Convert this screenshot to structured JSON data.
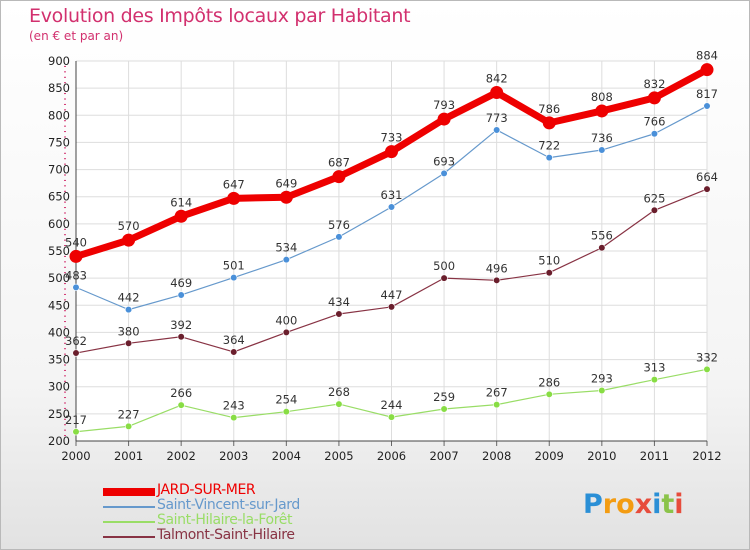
{
  "header": {
    "title": "Evolution des Impôts locaux par Habitant",
    "subtitle": "(en € et par an)"
  },
  "logo": {
    "letters": [
      "P",
      "r",
      "o",
      "x",
      "i",
      "t",
      "i"
    ],
    "colors": [
      "#2a8fd6",
      "#f39c12",
      "#f39c12",
      "#e74c3c",
      "#2a8fd6",
      "#8bc34a",
      "#e74c3c"
    ]
  },
  "chart_data": {
    "type": "line",
    "title": "Evolution des Impôts locaux par Habitant",
    "subtitle": "(en € et par an)",
    "xlabel": "",
    "ylabel": "",
    "x": [
      "2000",
      "2001",
      "2002",
      "2003",
      "2004",
      "2005",
      "2006",
      "2007",
      "2008",
      "2009",
      "2010",
      "2011",
      "2012"
    ],
    "ylim": [
      200,
      900
    ],
    "yticks": [
      "200",
      "250",
      "300",
      "350",
      "400",
      "450",
      "500",
      "550",
      "600",
      "650",
      "700",
      "750",
      "800",
      "850",
      "900"
    ],
    "grid": true,
    "legend_position": "bottom-left",
    "series": [
      {
        "name": "JARD-SUR-MER",
        "color": "#ee0000",
        "values": [
          540,
          570,
          614,
          647,
          649,
          687,
          733,
          793,
          842,
          786,
          808,
          832,
          884
        ]
      },
      {
        "name": "Saint-Vincent-sur-Jard",
        "color": "#6699cc",
        "values": [
          483,
          442,
          469,
          501,
          534,
          576,
          631,
          693,
          773,
          722,
          736,
          766,
          817
        ]
      },
      {
        "name": "Saint-Hilaire-la-Forêt",
        "color": "#99dd66",
        "values": [
          217,
          227,
          266,
          243,
          254,
          268,
          244,
          259,
          267,
          286,
          293,
          313,
          332
        ]
      },
      {
        "name": "Talmont-Saint-Hilaire",
        "color": "#883344",
        "values": [
          362,
          380,
          392,
          364,
          400,
          434,
          447,
          500,
          496,
          510,
          556,
          625,
          664
        ]
      }
    ]
  }
}
